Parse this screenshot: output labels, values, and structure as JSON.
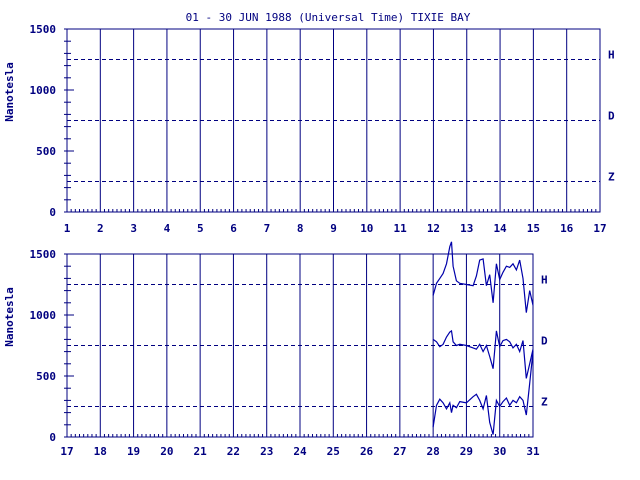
{
  "colors": {
    "ink": "#000080",
    "trace": "#0000aa",
    "background": "#ffffff"
  },
  "chart_data": {
    "type": "line",
    "title": "01 - 30 JUN 1988 (Universal Time) TIXIE BAY",
    "ylabel": "Nanotesla",
    "ylim": [
      0,
      1500
    ],
    "yticks": [
      0,
      500,
      1000,
      1500
    ],
    "yminor_step": 100,
    "reference_lines": [
      {
        "name": "H",
        "value": 1250
      },
      {
        "name": "D",
        "value": 750
      },
      {
        "name": "Z",
        "value": 250
      }
    ],
    "grid": "vertical lines at each day",
    "panels": [
      {
        "xlim": [
          1,
          17
        ],
        "xticks": [
          "1",
          "2",
          "3",
          "4",
          "5",
          "6",
          "7",
          "8",
          "9",
          "10",
          "11",
          "12",
          "13",
          "14",
          "15",
          "16",
          "17"
        ],
        "x_minor_per_day": 8,
        "series": []
      },
      {
        "xlim": [
          17,
          31
        ],
        "xticks": [
          "17",
          "18",
          "19",
          "20",
          "21",
          "22",
          "23",
          "24",
          "25",
          "26",
          "27",
          "28",
          "29",
          "30",
          "31"
        ],
        "x_minor_per_day": 8,
        "series": [
          {
            "name": "H",
            "x": [
              28.0,
              28.1,
              28.2,
              28.3,
              28.4,
              28.5,
              28.55,
              28.6,
              28.7,
              28.8,
              29.0,
              29.2,
              29.3,
              29.4,
              29.5,
              29.6,
              29.7,
              29.8,
              29.9,
              30.0,
              30.1,
              30.2,
              30.3,
              30.4,
              30.5,
              30.6,
              30.7,
              30.8,
              30.9,
              31.0
            ],
            "values": [
              1160,
              1260,
              1300,
              1340,
              1420,
              1560,
              1600,
              1400,
              1280,
              1260,
              1250,
              1240,
              1320,
              1450,
              1460,
              1240,
              1330,
              1100,
              1420,
              1290,
              1350,
              1400,
              1390,
              1420,
              1370,
              1450,
              1300,
              1020,
              1200,
              1080
            ]
          },
          {
            "name": "D",
            "x": [
              28.0,
              28.1,
              28.2,
              28.3,
              28.4,
              28.5,
              28.55,
              28.6,
              28.7,
              28.8,
              29.0,
              29.2,
              29.3,
              29.4,
              29.5,
              29.6,
              29.7,
              29.8,
              29.9,
              30.0,
              30.1,
              30.2,
              30.3,
              30.4,
              30.5,
              30.6,
              30.7,
              30.8,
              30.9,
              31.0
            ],
            "values": [
              800,
              780,
              740,
              760,
              820,
              860,
              870,
              780,
              750,
              760,
              750,
              730,
              720,
              760,
              700,
              750,
              660,
              560,
              870,
              740,
              790,
              800,
              780,
              730,
              760,
              700,
              790,
              480,
              600,
              720
            ]
          },
          {
            "name": "Z",
            "x": [
              28.0,
              28.1,
              28.2,
              28.3,
              28.4,
              28.5,
              28.55,
              28.6,
              28.7,
              28.8,
              29.0,
              29.2,
              29.3,
              29.4,
              29.5,
              29.6,
              29.7,
              29.8,
              29.9,
              30.0,
              30.1,
              30.2,
              30.3,
              30.4,
              30.5,
              30.6,
              30.7,
              30.8,
              30.9,
              31.0
            ],
            "values": [
              80,
              260,
              310,
              280,
              230,
              280,
              200,
              260,
              240,
              290,
              280,
              330,
              350,
              300,
              230,
              340,
              120,
              20,
              300,
              250,
              290,
              320,
              260,
              300,
              280,
              330,
              300,
              180,
              440,
              700
            ]
          }
        ]
      }
    ]
  }
}
